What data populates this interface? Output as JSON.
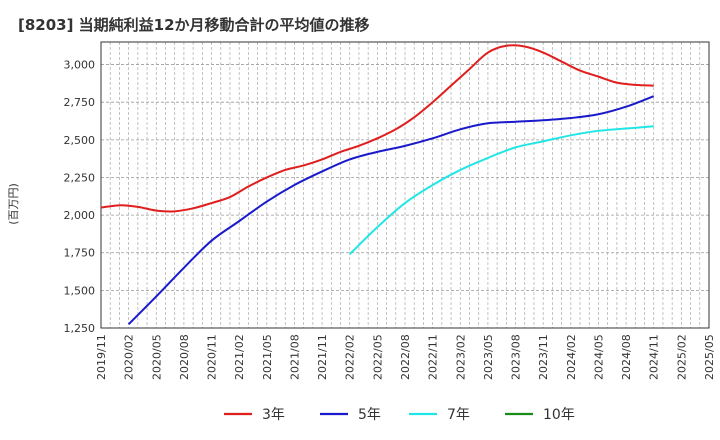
{
  "chart_data": {
    "type": "line",
    "title": "[8203]  当期純利益12か月移動合計の平均値の推移",
    "ylabel": "(百万円)",
    "xlabel": "",
    "ylim": [
      1250,
      3150
    ],
    "yticks": [
      1250,
      1500,
      1750,
      2000,
      2250,
      2500,
      2750,
      3000
    ],
    "ytick_labels": [
      "1,250",
      "1,500",
      "1,750",
      "2,000",
      "2,250",
      "2,500",
      "2,750",
      "3,000"
    ],
    "xticks": [
      "2019/11",
      "2020/02",
      "2020/05",
      "2020/08",
      "2020/11",
      "2021/02",
      "2021/05",
      "2021/08",
      "2021/11",
      "2022/02",
      "2022/05",
      "2022/08",
      "2022/11",
      "2023/02",
      "2023/05",
      "2023/08",
      "2023/11",
      "2024/02",
      "2024/05",
      "2024/08",
      "2024/11",
      "2025/02",
      "2025/05"
    ],
    "grid": true,
    "legend_position": "bottom",
    "series": [
      {
        "name": "3年",
        "color": "#e01e1e",
        "points": [
          [
            "2019/11",
            2050
          ],
          [
            "2020/01",
            2065
          ],
          [
            "2020/03",
            2055
          ],
          [
            "2020/05",
            2030
          ],
          [
            "2020/07",
            2025
          ],
          [
            "2020/09",
            2045
          ],
          [
            "2020/11",
            2080
          ],
          [
            "2021/01",
            2120
          ],
          [
            "2021/03",
            2190
          ],
          [
            "2021/05",
            2250
          ],
          [
            "2021/07",
            2300
          ],
          [
            "2021/09",
            2330
          ],
          [
            "2021/11",
            2370
          ],
          [
            "2022/01",
            2420
          ],
          [
            "2022/03",
            2460
          ],
          [
            "2022/05",
            2510
          ],
          [
            "2022/07",
            2570
          ],
          [
            "2022/09",
            2650
          ],
          [
            "2022/11",
            2750
          ],
          [
            "2023/01",
            2860
          ],
          [
            "2023/03",
            2970
          ],
          [
            "2023/05",
            3080
          ],
          [
            "2023/07",
            3125
          ],
          [
            "2023/09",
            3120
          ],
          [
            "2023/11",
            3080
          ],
          [
            "2024/01",
            3020
          ],
          [
            "2024/03",
            2960
          ],
          [
            "2024/05",
            2920
          ],
          [
            "2024/07",
            2880
          ],
          [
            "2024/09",
            2865
          ],
          [
            "2024/11",
            2860
          ]
        ]
      },
      {
        "name": "5年",
        "color": "#1a1acc",
        "points": [
          [
            "2020/02",
            1275
          ],
          [
            "2020/05",
            1460
          ],
          [
            "2020/08",
            1650
          ],
          [
            "2020/11",
            1830
          ],
          [
            "2021/02",
            1960
          ],
          [
            "2021/05",
            2090
          ],
          [
            "2021/08",
            2200
          ],
          [
            "2021/11",
            2290
          ],
          [
            "2022/02",
            2370
          ],
          [
            "2022/05",
            2420
          ],
          [
            "2022/08",
            2460
          ],
          [
            "2022/11",
            2510
          ],
          [
            "2023/02",
            2570
          ],
          [
            "2023/05",
            2610
          ],
          [
            "2023/08",
            2620
          ],
          [
            "2023/11",
            2630
          ],
          [
            "2024/02",
            2645
          ],
          [
            "2024/05",
            2670
          ],
          [
            "2024/08",
            2720
          ],
          [
            "2024/11",
            2790
          ]
        ]
      },
      {
        "name": "7年",
        "color": "#22e5e5",
        "points": [
          [
            "2022/02",
            1740
          ],
          [
            "2022/05",
            1920
          ],
          [
            "2022/08",
            2080
          ],
          [
            "2022/11",
            2200
          ],
          [
            "2023/02",
            2300
          ],
          [
            "2023/05",
            2380
          ],
          [
            "2023/08",
            2450
          ],
          [
            "2023/11",
            2490
          ],
          [
            "2024/02",
            2530
          ],
          [
            "2024/05",
            2560
          ],
          [
            "2024/08",
            2575
          ],
          [
            "2024/11",
            2590
          ]
        ]
      },
      {
        "name": "10年",
        "color": "#1a8c1a",
        "points": []
      }
    ]
  }
}
